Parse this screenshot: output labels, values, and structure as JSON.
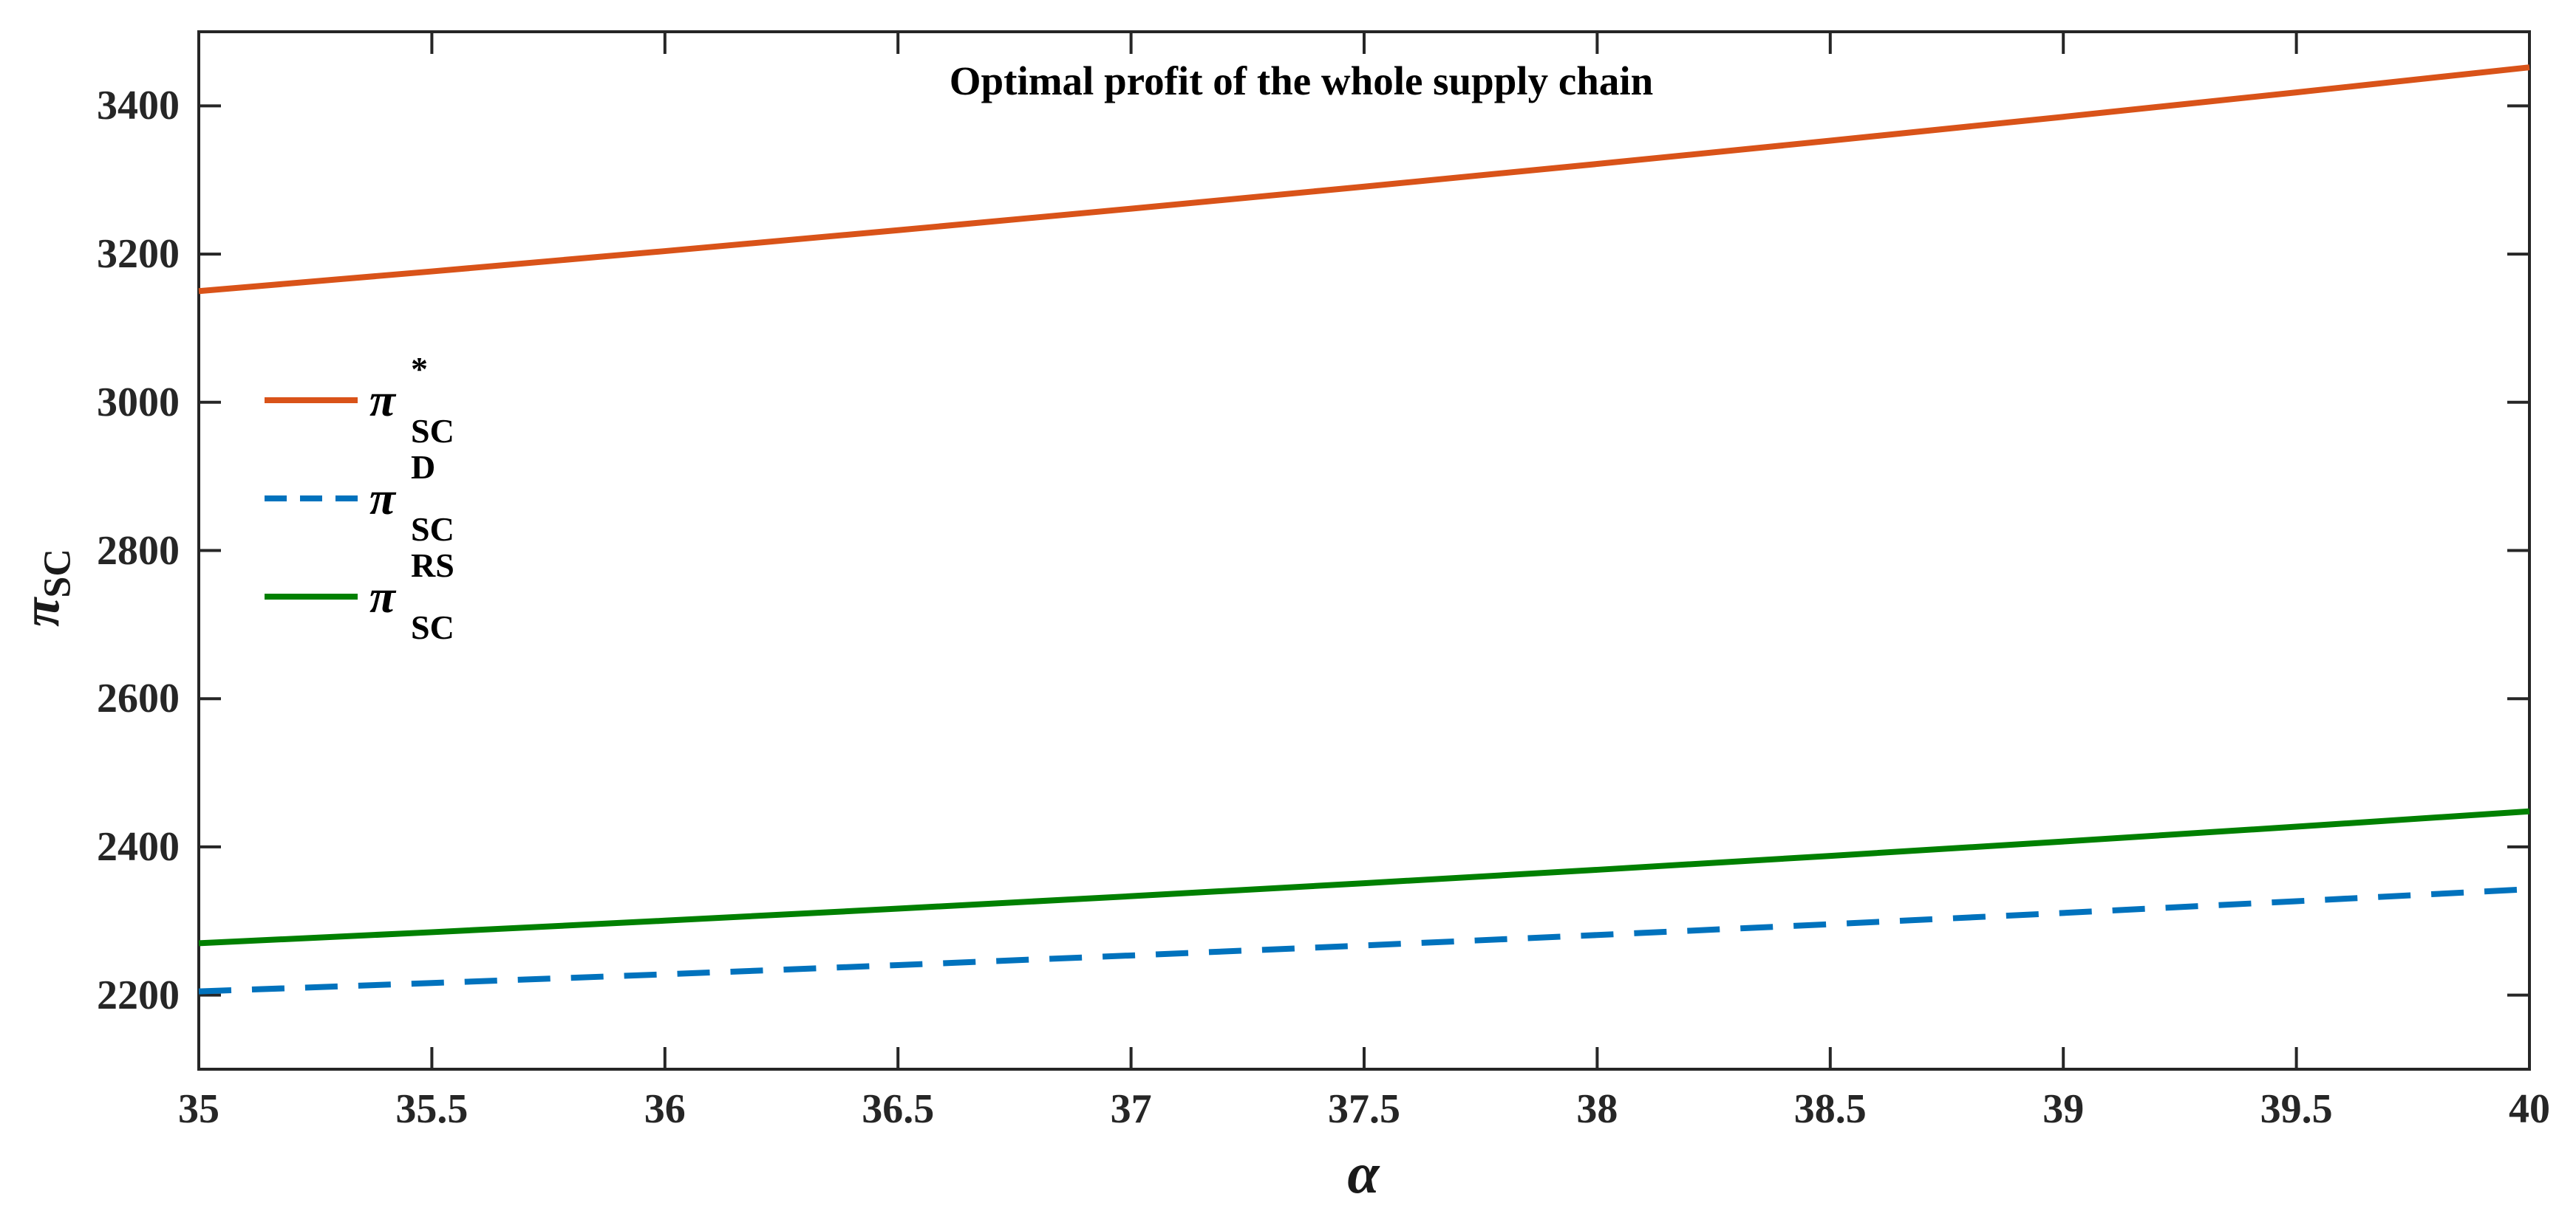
{
  "figure": {
    "title": "Optimal profit of the whole supply chain",
    "xlabel": "α",
    "ylabel": {
      "main": "π",
      "sub": "SC"
    }
  },
  "chart_data": {
    "type": "line",
    "title": "Optimal profit of the whole supply chain",
    "xlabel": "α",
    "ylabel": "π_SC",
    "xlim": [
      35,
      40
    ],
    "ylim": [
      2100,
      3500
    ],
    "grid": false,
    "box": true,
    "tick_direction": "in",
    "legend_position": "upper-left-inside",
    "axis_color": "#262626",
    "x": [
      35,
      35.5,
      36,
      36.5,
      37,
      37.5,
      38,
      38.5,
      39,
      39.5,
      40
    ],
    "x_tick_labels": [
      "35",
      "35.5",
      "36",
      "36.5",
      "37",
      "37.5",
      "38",
      "38.5",
      "39",
      "39.5",
      "40"
    ],
    "y_ticks": [
      2200,
      2400,
      2600,
      2800,
      3000,
      3200,
      3400
    ],
    "y_tick_labels": [
      "2200",
      "2400",
      "2600",
      "2800",
      "3000",
      "3200",
      "3400"
    ],
    "series": [
      {
        "name": "π*_SC",
        "label": {
          "pi": "π",
          "sup": "*",
          "sub": "SC"
        },
        "color": "#D95319",
        "line_style": "solid",
        "values": [
          3150.0,
          3176.6,
          3204.0,
          3232.2,
          3261.2,
          3291.0,
          3321.6,
          3353.0,
          3385.2,
          3418.2,
          3452.0
        ]
      },
      {
        "name": "π^D_SC",
        "label": {
          "pi": "π",
          "sup": "D",
          "sub": "SC"
        },
        "color": "#0072BD",
        "line_style": "dashed",
        "values": [
          2205.0,
          2216.3,
          2228.1,
          2240.5,
          2253.5,
          2267.0,
          2281.1,
          2295.7,
          2310.9,
          2326.7,
          2343.0
        ]
      },
      {
        "name": "π^RS_SC",
        "label": {
          "pi": "π",
          "sup": "RS",
          "sub": "SC"
        },
        "color": "#008000",
        "line_style": "solid",
        "values": [
          2270.0,
          2284.9,
          2300.5,
          2316.7,
          2333.5,
          2351.0,
          2369.1,
          2387.9,
          2407.3,
          2427.3,
          2448.0
        ]
      }
    ]
  }
}
